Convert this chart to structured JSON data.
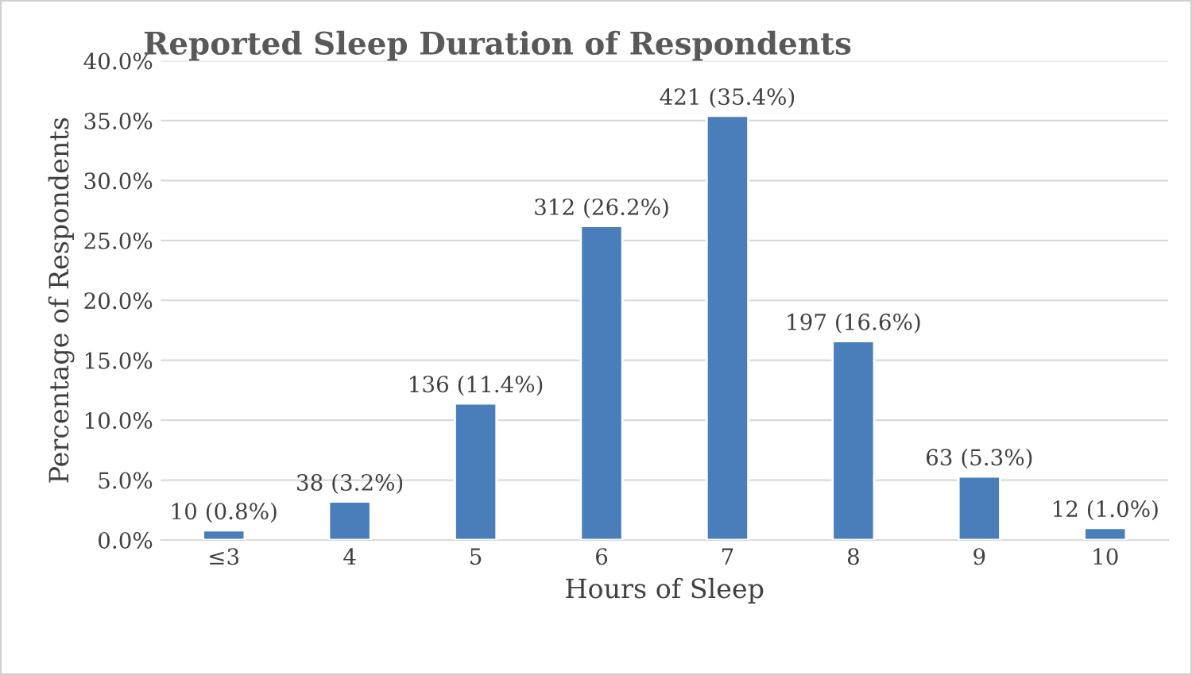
{
  "chart_data": {
    "type": "bar",
    "title": "Reported Sleep Duration of Respondents",
    "xlabel": "Hours of Sleep",
    "ylabel": "Percentage of Respondents",
    "categories": [
      "≤3",
      "4",
      "5",
      "6",
      "7",
      "8",
      "9",
      "10"
    ],
    "values": [
      0.8,
      3.2,
      11.4,
      26.2,
      35.4,
      16.6,
      5.3,
      1.0
    ],
    "value_labels": [
      "10 (0.8%)",
      "38 (3.2%)",
      "136 (11.4%)",
      "312 (26.2%)",
      "421 (35.4%)",
      "197 (16.6%)",
      "63 (5.3%)",
      "12 (1.0%)"
    ],
    "color": "#4a7ebb",
    "ylim": [
      0,
      40
    ],
    "yticks": [
      {
        "value": 0,
        "label": "0.0%"
      },
      {
        "value": 5,
        "label": "5.0%"
      },
      {
        "value": 10,
        "label": "10.0%"
      },
      {
        "value": 15,
        "label": "15.0%"
      },
      {
        "value": 20,
        "label": "20.0%"
      },
      {
        "value": 25,
        "label": "25.0%"
      },
      {
        "value": 30,
        "label": "30.0%"
      },
      {
        "value": 35,
        "label": "35.0%"
      },
      {
        "value": 40,
        "label": "40.0%"
      }
    ],
    "grid": "y",
    "legend": false
  }
}
